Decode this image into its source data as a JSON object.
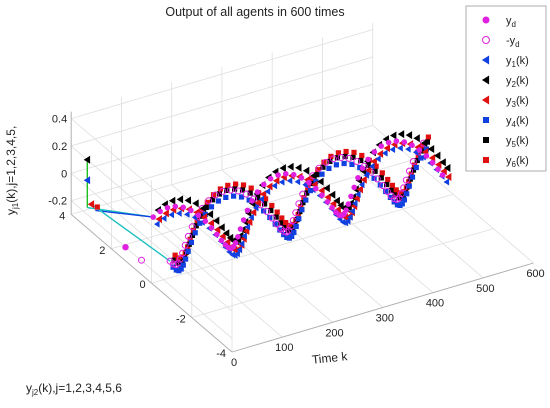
{
  "chart_data": {
    "type": "scatter",
    "title": "Output of all agents in 600 times",
    "x_axis": {
      "label": "Time k",
      "ticks": [
        "0",
        "100",
        "200",
        "300",
        "400",
        "500",
        "600"
      ],
      "range": [
        0,
        600
      ]
    },
    "y_axis": {
      "label_main": "y",
      "label_sub": "j2",
      "label_tail": "(k),j=1,2,3,4,5,6",
      "ticks": [
        "-4",
        "-2",
        "0",
        "2",
        "4"
      ],
      "range": [
        -4,
        4
      ]
    },
    "z_axis": {
      "label_main": "y",
      "label_sub": "j1",
      "label_tail": "(k),j=1,2,3,4,5,",
      "ticks": [
        "-0.2",
        "0",
        "0.2",
        "0.4"
      ],
      "range": [
        -0.3,
        0.45
      ]
    },
    "grid": true,
    "legend_position": "top-right",
    "legend": [
      {
        "main": "y",
        "sub": "d",
        "tail": "",
        "color": "#e020e0",
        "marker": "filled-circle"
      },
      {
        "main": "-y",
        "sub": "d",
        "tail": "",
        "color": "#e020e0",
        "marker": "open-circle"
      },
      {
        "main": "y",
        "sub": "1",
        "tail": "(k)",
        "color": "#1040e0",
        "marker": "triangle-left"
      },
      {
        "main": "y",
        "sub": "2",
        "tail": "(k)",
        "color": "#000000",
        "marker": "triangle-left"
      },
      {
        "main": "y",
        "sub": "3",
        "tail": "(k)",
        "color": "#e01010",
        "marker": "triangle-left"
      },
      {
        "main": "y",
        "sub": "4",
        "tail": "(k)",
        "color": "#1040e0",
        "marker": "square"
      },
      {
        "main": "y",
        "sub": "5",
        "tail": "(k)",
        "color": "#000000",
        "marker": "square"
      },
      {
        "main": "y",
        "sub": "6",
        "tail": "(k)",
        "color": "#e01010",
        "marker": "square"
      }
    ],
    "series": [
      {
        "name": "y_d",
        "trajectory": "z = 0.2 sin(2πk/220), y = 0.5 cos(2πk/220), k = 20..560 step 10"
      },
      {
        "name": "-y_d",
        "trajectory": "z = -0.2 sin(2πk/220), y = -0.5 cos(2πk/220), k = 20..560 step 10"
      },
      {
        "name": "y_1(k)",
        "converges_to": "y_d"
      },
      {
        "name": "y_2(k)",
        "converges_to": "y_d"
      },
      {
        "name": "y_3(k)",
        "converges_to": "y_d"
      },
      {
        "name": "y_4(k)",
        "converges_to": "-y_d"
      },
      {
        "name": "y_5(k)",
        "converges_to": "-y_d"
      },
      {
        "name": "y_6(k)",
        "converges_to": "-y_d"
      }
    ],
    "colors": {
      "magenta": "#e020e0",
      "blue": "#1040e0",
      "black": "#000000",
      "red": "#e01010",
      "green": "#20c020",
      "cyan": "#20c0c0"
    }
  }
}
